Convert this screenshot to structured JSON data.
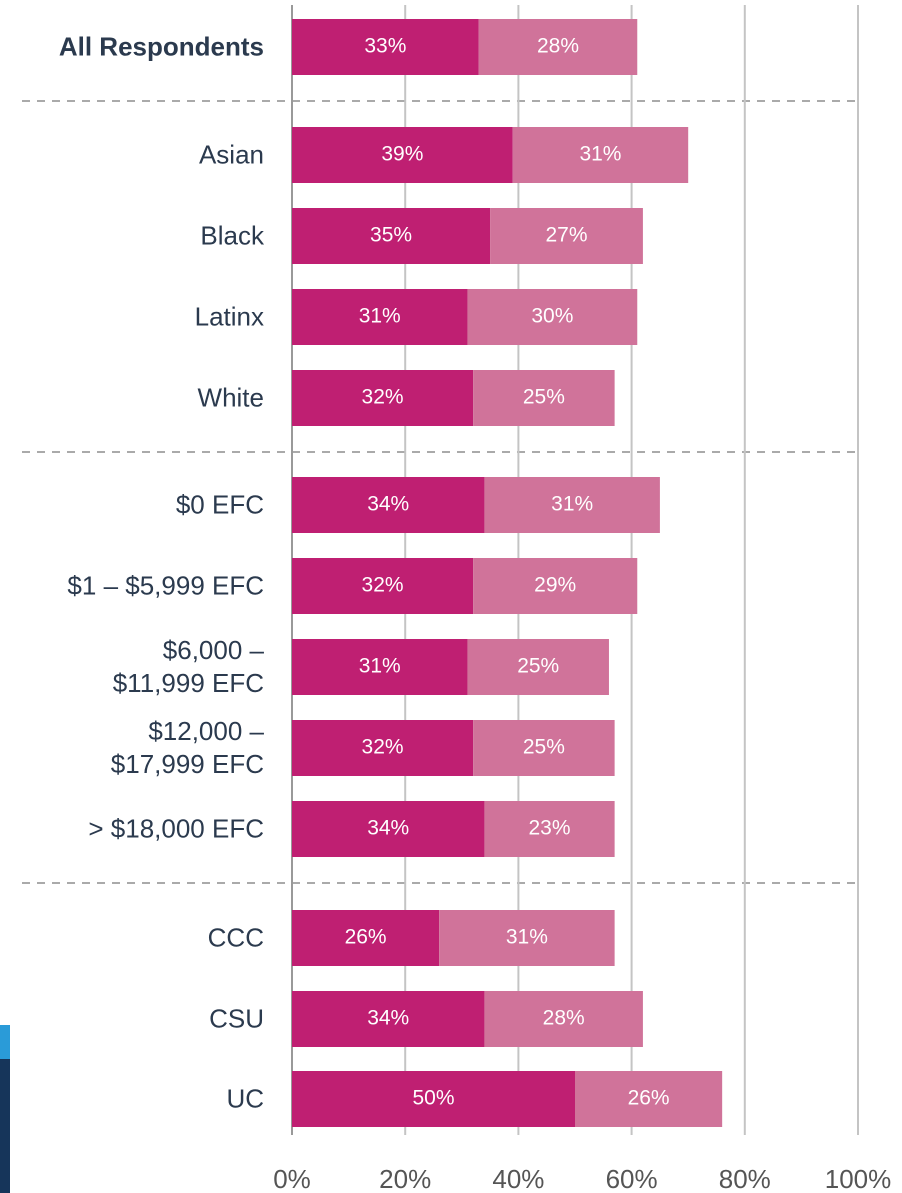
{
  "chart_data": {
    "type": "stacked-bar-horizontal",
    "categories": [
      "All Respondents",
      "Asian",
      "Black",
      "Latinx",
      "White",
      "$0 EFC",
      "$1 – $5,999 EFC",
      "$6,000 –\n$11,999 EFC",
      "$12,000 –\n$17,999 EFC",
      "> $18,000 EFC",
      "CCC",
      "CSU",
      "UC"
    ],
    "series": [
      {
        "color": "#bf1f72",
        "values": [
          33,
          39,
          35,
          31,
          32,
          34,
          32,
          31,
          32,
          34,
          26,
          34,
          50
        ],
        "value_labels": [
          "33%",
          "39%",
          "35%",
          "31%",
          "32%",
          "34%",
          "32%",
          "31%",
          "32%",
          "34%",
          "26%",
          "34%",
          "50%"
        ]
      },
      {
        "color": "#d0739a",
        "values": [
          28,
          31,
          27,
          30,
          25,
          31,
          29,
          25,
          25,
          23,
          31,
          28,
          26
        ],
        "value_labels": [
          "28%",
          "31%",
          "27%",
          "30%",
          "25%",
          "31%",
          "29%",
          "25%",
          "25%",
          "23%",
          "31%",
          "28%",
          "26%"
        ]
      }
    ],
    "xlim": [
      0,
      100
    ],
    "xticks": [
      {
        "value": 0,
        "label": "0%"
      },
      {
        "value": 20,
        "label": "20%"
      },
      {
        "value": 40,
        "label": "40%"
      },
      {
        "value": 60,
        "label": "60%"
      },
      {
        "value": 80,
        "label": "80%"
      },
      {
        "value": 100,
        "label": "100%"
      }
    ],
    "grid": true
  }
}
